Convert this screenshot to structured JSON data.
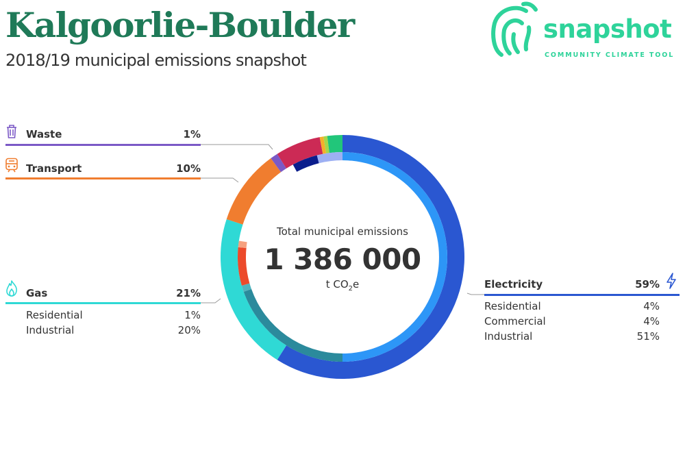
{
  "header": {
    "title": "Kalgoorlie-Boulder",
    "subtitle": "2018/19 municipal emissions snapshot"
  },
  "logo": {
    "wordmark": "snapshot",
    "tagline": "COMMUNITY CLIMATE TOOL",
    "color": "#2ed39a",
    "icon": "snapshot-fingerprint-logo"
  },
  "center": {
    "label": "Total municipal emissions",
    "value": "1 386 000",
    "unit_prefix": "t CO",
    "unit_sub": "2",
    "unit_suffix": "e"
  },
  "categories": {
    "waste": {
      "name": "Waste",
      "pct": "1%",
      "color": "#7b59c6",
      "icon": "trash-icon"
    },
    "transport": {
      "name": "Transport",
      "pct": "10%",
      "color": "#f07d2f",
      "icon": "train-icon"
    },
    "gas": {
      "name": "Gas",
      "pct": "21%",
      "color": "#2fd9d5",
      "icon": "flame-icon",
      "subs": [
        {
          "name": "Residential",
          "pct": "1%"
        },
        {
          "name": "Industrial",
          "pct": "20%"
        }
      ]
    },
    "electricity": {
      "name": "Electricity",
      "pct": "59%",
      "color": "#2a57d1",
      "icon": "lightning-icon",
      "subs": [
        {
          "name": "Residential",
          "pct": "4%"
        },
        {
          "name": "Commercial",
          "pct": "4%"
        },
        {
          "name": "Industrial",
          "pct": "51%"
        }
      ]
    }
  },
  "chart_data": {
    "type": "pie",
    "title": "Total municipal emissions",
    "total": 1386000,
    "unit": "t CO2e",
    "outer_ring": [
      {
        "name": "Electricity",
        "value": 59,
        "color": "#2a57d1"
      },
      {
        "name": "Gas",
        "value": 21,
        "color": "#2fd9d5"
      },
      {
        "name": "Transport",
        "value": 10,
        "color": "#f07d2f"
      },
      {
        "name": "Waste",
        "value": 1,
        "color": "#7b59c6"
      },
      {
        "name": "",
        "value": 6,
        "color": "#cc2a55"
      },
      {
        "name": "",
        "value": 0.5,
        "color": "#f5b02a"
      },
      {
        "name": "",
        "value": 0.5,
        "color": "#a8d64a"
      },
      {
        "name": "",
        "value": 2,
        "color": "#21c67a"
      }
    ],
    "inner_ring": [
      {
        "name": "Electricity Industrial",
        "value": 51,
        "color": "#2d96f7"
      },
      {
        "name": "Gas Industrial",
        "value": 20,
        "color": "#2b8a9c"
      },
      {
        "name": "Gas Residential",
        "value": 1,
        "color": "#4fb3bd"
      },
      {
        "name": "",
        "value": 6,
        "color": "#ec4a2b"
      },
      {
        "name": "",
        "value": 1,
        "color": "#f6a17f"
      },
      {
        "name": "",
        "value": 15,
        "color": "#ffffff"
      },
      {
        "name": "Electricity Commercial",
        "value": 4,
        "color": "#0a1d8c"
      },
      {
        "name": "Electricity Residential",
        "value": 4,
        "color": "#9db0f3"
      }
    ]
  }
}
